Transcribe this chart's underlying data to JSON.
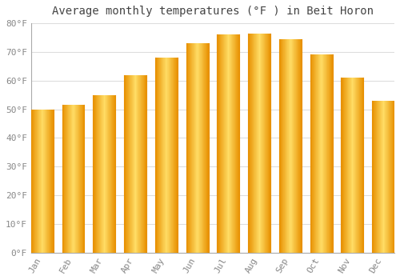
{
  "title": "Average monthly temperatures (°F ) in Beit Horon",
  "months": [
    "Jan",
    "Feb",
    "Mar",
    "Apr",
    "May",
    "Jun",
    "Jul",
    "Aug",
    "Sep",
    "Oct",
    "Nov",
    "Dec"
  ],
  "values": [
    50,
    51.5,
    55,
    62,
    68,
    73,
    76,
    76.5,
    74.5,
    69,
    61,
    53
  ],
  "bar_color_main": "#FFBB00",
  "bar_color_light": "#FFD966",
  "bar_color_dark": "#E89000",
  "background_color": "#FFFFFF",
  "grid_color": "#DDDDDD",
  "text_color": "#888888",
  "title_color": "#444444",
  "ylim": [
    0,
    80
  ],
  "yticks": [
    0,
    10,
    20,
    30,
    40,
    50,
    60,
    70,
    80
  ],
  "ytick_labels": [
    "0°F",
    "10°F",
    "20°F",
    "30°F",
    "40°F",
    "50°F",
    "60°F",
    "70°F",
    "80°F"
  ],
  "title_fontsize": 10,
  "tick_fontsize": 8,
  "font_family": "monospace"
}
